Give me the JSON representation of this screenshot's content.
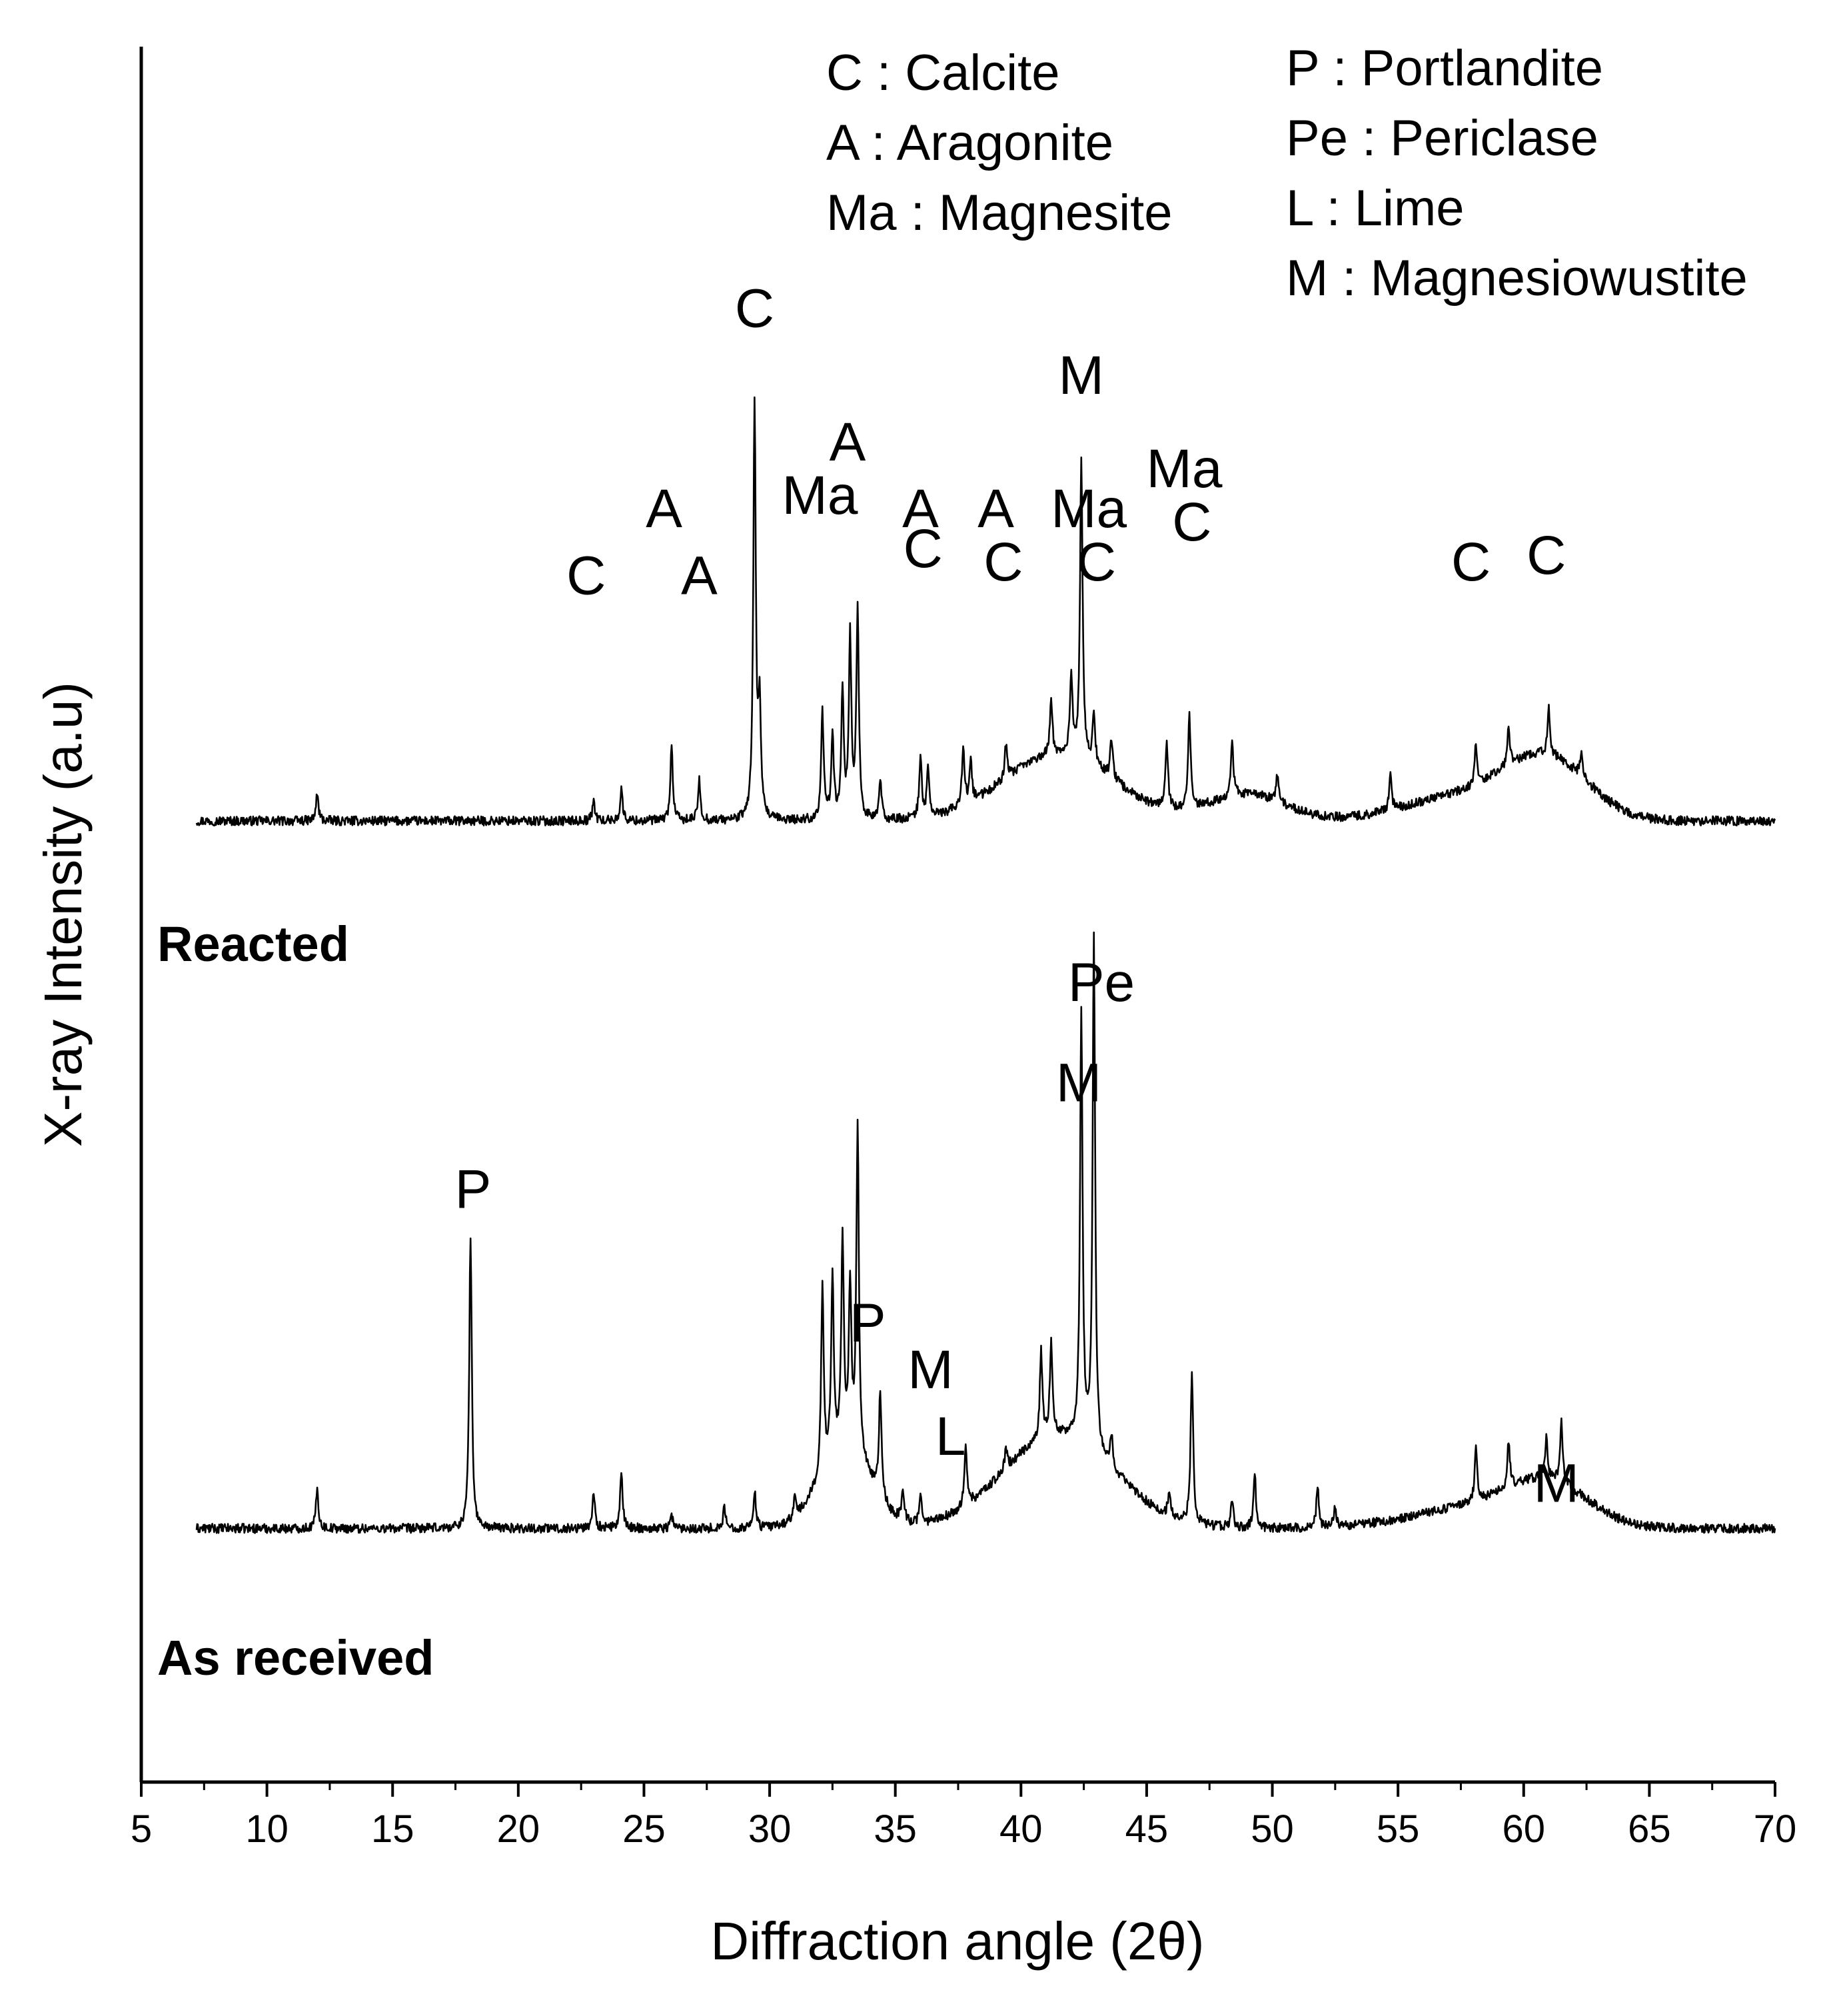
{
  "chart_data": {
    "type": "line",
    "title": "",
    "xlabel": "Diffraction angle (2θ)",
    "ylabel": "X-ray Intensity (a.u)",
    "xlim": [
      5,
      70
    ],
    "xticks": [
      5,
      10,
      15,
      20,
      25,
      30,
      35,
      40,
      45,
      50,
      55,
      60,
      65,
      70
    ],
    "ylim": [
      0,
      130
    ],
    "legend": {
      "placement": "top-right",
      "entries": [
        {
          "symbol": "C",
          "text": "C : Calcite"
        },
        {
          "symbol": "A",
          "text": "A : Aragonite"
        },
        {
          "symbol": "Ma",
          "text": "Ma : Magnesite"
        },
        {
          "symbol": "P",
          "text": "P : Portlandite"
        },
        {
          "symbol": "Pe",
          "text": "Pe : Periclase"
        },
        {
          "symbol": "L",
          "text": "L : Lime"
        },
        {
          "symbol": "M",
          "text": "M : Magnesiowustite"
        }
      ]
    },
    "series": [
      {
        "name": "Reacted",
        "baseline": 72,
        "x_start": 7.2,
        "noise": 0.35,
        "broad": [
          [
            41.5,
            2.2,
            5
          ],
          [
            61,
            1.6,
            4
          ],
          [
            58,
            2.5,
            2
          ],
          [
            49,
            1.5,
            2
          ]
        ],
        "peaks": [
          [
            12.0,
            2.0
          ],
          [
            23.0,
            1.5
          ],
          [
            24.1,
            2.3
          ],
          [
            26.1,
            5.5
          ],
          [
            27.2,
            3.0
          ],
          [
            29.4,
            31.0
          ],
          [
            29.6,
            8.0
          ],
          [
            32.1,
            8.0
          ],
          [
            32.5,
            6.5
          ],
          [
            32.9,
            9.5
          ],
          [
            33.2,
            13.5
          ],
          [
            33.5,
            15.5
          ],
          [
            34.4,
            3.0
          ],
          [
            36.0,
            4.5
          ],
          [
            36.3,
            3.5
          ],
          [
            37.7,
            4.5
          ],
          [
            38.0,
            3.0
          ],
          [
            39.4,
            2.5
          ],
          [
            41.2,
            4.0
          ],
          [
            42.0,
            6.0
          ],
          [
            42.4,
            22.5
          ],
          [
            42.9,
            4.0
          ],
          [
            43.6,
            3.0
          ],
          [
            45.8,
            5.0
          ],
          [
            46.7,
            7.0
          ],
          [
            48.4,
            4.0
          ],
          [
            50.2,
            2.0
          ],
          [
            54.7,
            2.5
          ],
          [
            58.1,
            3.0
          ],
          [
            59.4,
            3.0
          ],
          [
            61.0,
            3.5
          ],
          [
            62.3,
            2.0
          ]
        ],
        "peak_labels": [
          {
            "text": "C",
            "x": 22.7,
            "y": 89
          },
          {
            "text": "A",
            "x": 25.8,
            "y": 94
          },
          {
            "text": "A",
            "x": 27.2,
            "y": 89
          },
          {
            "text": "C",
            "x": 29.4,
            "y": 109
          },
          {
            "text": "Ma",
            "x": 32.0,
            "y": 95
          },
          {
            "text": "A",
            "x": 33.1,
            "y": 99
          },
          {
            "text": "A",
            "x": 36.0,
            "y": 94
          },
          {
            "text": "C",
            "x": 36.1,
            "y": 91
          },
          {
            "text": "A",
            "x": 39.0,
            "y": 94
          },
          {
            "text": "C",
            "x": 39.3,
            "y": 90
          },
          {
            "text": "M",
            "x": 42.4,
            "y": 104
          },
          {
            "text": "Ma",
            "x": 42.7,
            "y": 94
          },
          {
            "text": "C",
            "x": 43.0,
            "y": 90
          },
          {
            "text": "Ma",
            "x": 46.5,
            "y": 97
          },
          {
            "text": "C",
            "x": 46.8,
            "y": 93
          },
          {
            "text": "C",
            "x": 57.9,
            "y": 90
          },
          {
            "text": "C",
            "x": 60.9,
            "y": 90.5
          }
        ]
      },
      {
        "name": "As received",
        "baseline": 19,
        "x_start": 7.2,
        "noise": 0.35,
        "broad": [
          [
            41.5,
            2.2,
            7
          ],
          [
            33.0,
            1.0,
            6
          ],
          [
            61,
            1.6,
            3
          ],
          [
            58,
            2.5,
            1.5
          ]
        ],
        "peaks": [
          [
            12.0,
            3.0
          ],
          [
            18.1,
            22.0
          ],
          [
            23.0,
            2.7
          ],
          [
            24.1,
            4.0
          ],
          [
            26.1,
            1.0
          ],
          [
            28.2,
            1.5
          ],
          [
            29.4,
            2.8
          ],
          [
            31.0,
            1.5
          ],
          [
            32.1,
            14.0
          ],
          [
            32.5,
            13.5
          ],
          [
            32.9,
            15.5
          ],
          [
            33.2,
            12.0
          ],
          [
            33.5,
            24.5
          ],
          [
            34.4,
            8.0
          ],
          [
            35.3,
            2.5
          ],
          [
            36.0,
            2.0
          ],
          [
            37.8,
            4.5
          ],
          [
            39.4,
            1.5
          ],
          [
            40.8,
            6.5
          ],
          [
            41.2,
            7.0
          ],
          [
            42.4,
            32.0
          ],
          [
            42.9,
            38.5
          ],
          [
            43.6,
            2.5
          ],
          [
            45.9,
            2.0
          ],
          [
            46.8,
            11.5
          ],
          [
            48.4,
            2.0
          ],
          [
            49.3,
            4.0
          ],
          [
            51.8,
            3.0
          ],
          [
            52.5,
            1.5
          ],
          [
            58.1,
            4.0
          ],
          [
            59.4,
            3.5
          ],
          [
            60.9,
            3.0
          ],
          [
            61.5,
            4.5
          ]
        ],
        "peak_labels": [
          {
            "text": "P",
            "x": 18.2,
            "y": 43
          },
          {
            "text": "P",
            "x": 33.9,
            "y": 33
          },
          {
            "text": "M",
            "x": 36.4,
            "y": 29.5
          },
          {
            "text": "L",
            "x": 37.2,
            "y": 24.5
          },
          {
            "text": "Pe",
            "x": 43.2,
            "y": 58.5
          },
          {
            "text": "M",
            "x": 42.3,
            "y": 51
          },
          {
            "text": "M",
            "x": 61.3,
            "y": 21
          }
        ]
      }
    ]
  }
}
